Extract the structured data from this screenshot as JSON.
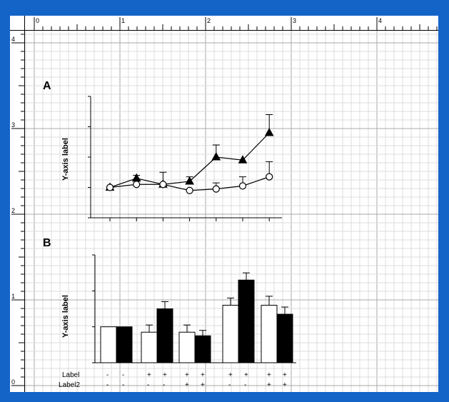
{
  "ruler": {
    "top_labels": [
      "0",
      "1",
      "2",
      "3",
      "4"
    ],
    "left_labels": [
      "4",
      "3",
      "2",
      "1",
      "0"
    ]
  },
  "colors": {
    "frame": "#1464c8",
    "grid_minor": "#dcdcdc",
    "grid_major": "#a8a8a8",
    "ink": "#000000"
  },
  "chart_data": [
    {
      "type": "line",
      "panel_label": "A",
      "ylabel": "Y-axis label",
      "x": [
        1,
        2,
        3,
        4,
        5,
        6,
        7
      ],
      "ylim": [
        0,
        4
      ],
      "grid": true,
      "series": [
        {
          "marker": "triangle-filled",
          "values": [
            1.0,
            1.3,
            1.1,
            1.2,
            2.0,
            1.9,
            2.8
          ],
          "errors": [
            0,
            0.1,
            0.4,
            0.15,
            0.4,
            0,
            0.6
          ]
        },
        {
          "marker": "circle-open",
          "values": [
            1.0,
            1.1,
            1.1,
            0.9,
            0.95,
            1.05,
            1.35
          ],
          "errors": [
            0,
            0,
            0,
            0,
            0.2,
            0.3,
            0.5
          ]
        }
      ]
    },
    {
      "type": "bar",
      "panel_label": "B",
      "ylabel": "Y-axis label",
      "ylim": [
        0,
        3
      ],
      "grid": true,
      "groups": [
        {
          "open": 1.0,
          "open_err": 0,
          "filled": 1.0,
          "filled_err": 0
        },
        {
          "open": 0.85,
          "open_err": 0.2,
          "filled": 1.5,
          "filled_err": 0.2
        },
        {
          "open": 0.85,
          "open_err": 0.2,
          "filled": 0.75,
          "filled_err": 0.15
        },
        {
          "open": 1.6,
          "open_err": 0.2,
          "filled": 2.3,
          "filled_err": 0.2
        },
        {
          "open": 1.6,
          "open_err": 0.25,
          "filled": 1.35,
          "filled_err": 0.2
        }
      ],
      "condition_rows": [
        {
          "name": "Label",
          "values": [
            "-",
            "-",
            "+",
            "+",
            "+",
            "+",
            "+",
            "+",
            "+",
            "+"
          ]
        },
        {
          "name": "Label2",
          "values": [
            "-",
            "-",
            "-",
            "-",
            "+",
            "+",
            "-",
            "-",
            "+",
            "+"
          ]
        }
      ]
    }
  ]
}
